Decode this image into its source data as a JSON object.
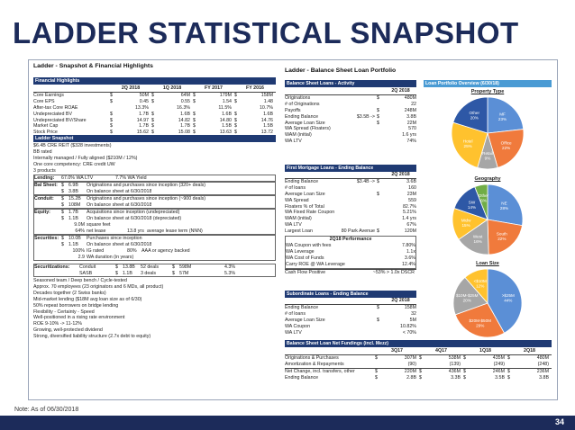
{
  "title": "LADDER STATISTICAL SNAPSHOT",
  "note": "Note: As of 06/30/2018",
  "page_number": "34",
  "left": {
    "heading": "Ladder - Snapshot & Financial Highlights",
    "fin": {
      "bar": "Financial Highlights",
      "cols": [
        "2Q 2018",
        "1Q 2018",
        "FY 2017",
        "FY 2016"
      ],
      "rows": [
        {
          "label": "Core Earnings",
          "c": [
            "$",
            "50M",
            "$",
            "64M",
            "$",
            "179M",
            "$",
            "158M"
          ]
        },
        {
          "label": "Core EPS",
          "c": [
            "$",
            "0.45",
            "$",
            "0.55",
            "$",
            "1.54",
            "$",
            "1.48"
          ]
        },
        {
          "label": "After-tax Core ROAE",
          "c": [
            "",
            "13.3%",
            "",
            "16.3%",
            "",
            "11.5%",
            "",
            "10.7%"
          ]
        },
        {
          "label": "Undepreciated BV",
          "c": [
            "$",
            "1.7B",
            "$",
            "1.6B",
            "$",
            "1.6B",
            "$",
            "1.6B"
          ]
        },
        {
          "label": "Undepreciated BV/Share",
          "c": [
            "$",
            "14.97",
            "$",
            "14.82",
            "$",
            "14.80",
            "$",
            "14.76"
          ]
        },
        {
          "label": "Market Cap",
          "c": [
            "$",
            "1.7B",
            "$",
            "1.7B",
            "$",
            "1.5B",
            "$",
            "1.5B"
          ]
        },
        {
          "label": "Stock Price",
          "c": [
            "$",
            "15.62",
            "$",
            "15.08",
            "$",
            "13.63",
            "$",
            "13.72"
          ]
        }
      ]
    },
    "snap": {
      "bar": "Ladder Snapshot",
      "lines": [
        "$6.4B CRE REIT ($328 investments)",
        "BB rated",
        "Internally managed / Fully aligned ($210M / 12%)",
        "One core competency: CRE credit UW",
        "3 products"
      ],
      "lending": {
        "label": "Lending:",
        "a": "67.0% WA LTV",
        "b": "7.7% WA Yield"
      },
      "balsheet": {
        "label": "Bal Sheet:",
        "r1a": "$",
        "r1b": "6.9B",
        "r1c": "Originations and purchases since inception (320+ deals)",
        "r2a": "$",
        "r2b": "3.8B",
        "r2c": "On balance sheet at 6/30/2018"
      },
      "conduit": {
        "label": "Conduit:",
        "r1a": "$",
        "r1b": "15.2B",
        "r1c": "Originations and purchases since inception (~900 deals)",
        "r2a": "$",
        "r2b": "108M",
        "r2c": "On balance sheet at 6/30/2018"
      },
      "equity": {
        "label": "Equity:",
        "r1a": "$",
        "r1b": "1.7B",
        "r1c": "Acquisitions since inception (undepreciated)",
        "r2a": "$",
        "r2b": "1.1B",
        "r2c": "On balance sheet at 6/30/2018 (depreciated)",
        "r3a": "9.0M",
        "r3b": "square feet",
        "r4a": "64%",
        "r4b": "net lease",
        "r4c": "13.8 yrs",
        "r4d": "average lease term (NNN)"
      },
      "securities": {
        "label": "Securities:",
        "r1a": "$",
        "r1b": "10.0B",
        "r1c": "Purchases since inception",
        "r2a": "$",
        "r2b": "1.1B",
        "r2c": "On balance sheet at 6/30/2018",
        "r3a": "100%",
        "r3b": "IG rated",
        "r3c": "80%",
        "r3d": "AAA or agency backed",
        "r4a": "2.9",
        "r4b": "WA duration (in years)"
      },
      "securitizations": {
        "label": "Securitizations:",
        "r1a": "Conduit",
        "r1b": "$",
        "r1c": "13.8B",
        "r1d": "52 deals",
        "r1e": "$",
        "r1f": "598M",
        "r1g": "4.3%",
        "r2a": "SASB",
        "r2b": "$",
        "r2c": "1.1B",
        "r2d": "3 deals",
        "r2e": "$",
        "r2f": "57M",
        "r2g": "5.3%"
      },
      "tail": [
        "Seasoned team / Deep bench / Cycle-tested",
        "Approx. 70 employees (23 originators and 6 MDs, all product)",
        "Decades together (2 Swiss banks)",
        "Mid-market lending ($18M avg loan size as of 6/30)",
        "50% repeat borrowers on bridge lending",
        "Flexibility - Certainty - Speed",
        "Well-positioned in a rising rate environment",
        "ROE  9-10% -> 11-12%",
        "Growing, well-protected dividend",
        "Strong, diversified liability structure (2.7x debt to equity)"
      ]
    }
  },
  "right": {
    "heading": "Ladder - Balance Sheet Loan Portfolio",
    "bsl": {
      "bar": "Balance Sheet Loans - Activity",
      "col": "2Q 2018",
      "rows": [
        {
          "label": "Originations",
          "mid": "",
          "cur": "$",
          "val": "480M"
        },
        {
          "label": "# of Originations",
          "mid": "",
          "cur": "",
          "val": "22"
        },
        {
          "label": "Payoffs",
          "mid": "",
          "cur": "$",
          "val": "248M"
        },
        {
          "label": "Ending Balance",
          "mid": "$3.5B ->",
          "cur": "$",
          "val": "3.8B"
        },
        {
          "label": "Average Loan Size",
          "mid": "",
          "cur": "$",
          "val": "22M"
        },
        {
          "label": "WA Spread (Floaters)",
          "mid": "",
          "cur": "",
          "val": "570"
        },
        {
          "label": "WAM (initial)",
          "mid": "",
          "cur": "",
          "val": "1.6 yrs"
        },
        {
          "label": "WA LTV",
          "mid": "",
          "cur": "",
          "val": "74%"
        }
      ]
    },
    "fml": {
      "bar": "First Mortgage Loans - Ending Balance",
      "col": "2Q 2018",
      "rows": [
        {
          "label": "Ending Balance",
          "mid": "$3.4B ->",
          "cur": "$",
          "val": "3.6B"
        },
        {
          "label": "# of loans",
          "mid": "",
          "cur": "",
          "val": "160"
        },
        {
          "label": "Average Loan Size",
          "mid": "",
          "cur": "$",
          "val": "23M"
        },
        {
          "label": "WA Spread",
          "mid": "",
          "cur": "",
          "val": "559"
        },
        {
          "label": "Floaters % of Total",
          "mid": "",
          "cur": "",
          "val": "82.7%"
        },
        {
          "label": "WA Fixed Rate Coupon",
          "mid": "",
          "cur": "",
          "val": "5.21%"
        },
        {
          "label": "WAM (initial)",
          "mid": "",
          "cur": "",
          "val": "1.4 yrs"
        },
        {
          "label": "WA LTV",
          "mid": "",
          "cur": "",
          "val": "67%"
        },
        {
          "label": "Largest Loan",
          "mid": "80 Park Avenue",
          "cur": "$",
          "val": "120M"
        }
      ],
      "perf_title": "2Q18 Performance",
      "perf": [
        {
          "label": "WA Coupon with fees",
          "val": "7.80%"
        },
        {
          "label": "WA Leverage",
          "val": "1.1x"
        },
        {
          "label": "WA Cost of Funds",
          "val": "3.6%"
        },
        {
          "label": "Carry ROE @ WA Leverage",
          "val": "12.4%"
        }
      ],
      "cash_label": "Cash Flow Positive",
      "cash_val": "~53% > 1.0x DSCR"
    },
    "sub": {
      "bar": "Subordinate Loans - Ending Balance",
      "col": "2Q 2018",
      "rows": [
        {
          "label": "Ending Balance",
          "cur": "$",
          "val": "158M"
        },
        {
          "label": "# of loans",
          "cur": "",
          "val": "32"
        },
        {
          "label": "Average Loan Size",
          "cur": "$",
          "val": "5M"
        },
        {
          "label": "WA Coupon",
          "cur": "",
          "val": "10.82%"
        },
        {
          "label": "WA LTV",
          "cur": "",
          "val": "< 70%"
        }
      ]
    },
    "net": {
      "bar": "Balance Sheet Loan Net Fundings (incl. Mezz)",
      "cols": [
        "3Q17",
        "4Q17",
        "1Q18",
        "2Q18"
      ],
      "rows": [
        {
          "label": "Originations & Purchases",
          "c": [
            "$",
            "307M",
            "$",
            "538M",
            "$",
            "435M",
            "$",
            "480M"
          ]
        },
        {
          "label": "Amortization & Repayments",
          "c": [
            "",
            "(90)",
            "",
            "(139)",
            "",
            "(249)",
            "",
            "(248)"
          ]
        },
        {
          "label": "Net Change, incl. transfers, other",
          "c": [
            "$",
            "220M",
            "$",
            "436M",
            "$",
            "246M",
            "$",
            "236M"
          ]
        },
        {
          "label": "Ending Balance",
          "c": [
            "$",
            "2.8B",
            "$",
            "3.3B",
            "$",
            "3.5B",
            "$",
            "3.8B"
          ]
        }
      ]
    },
    "overview": {
      "bar": "Loan Portfolio Overview (6/30/18)",
      "p1_title": "Property Type",
      "p2_title": "Geography",
      "p3_title": "Loan Size"
    }
  },
  "chart_data": [
    {
      "type": "pie",
      "title": "Property Type",
      "slices": [
        {
          "label": "MF",
          "value": 23,
          "color": "#5b8fd6"
        },
        {
          "label": "Office",
          "value": 22,
          "color": "#f07a3c"
        },
        {
          "label": "Retail",
          "value": 9,
          "color": "#a6a6a6"
        },
        {
          "label": "Hotel",
          "value": 25,
          "color": "#ffc22e"
        },
        {
          "label": "Other",
          "value": 20,
          "color": "#2e58a6"
        }
      ]
    },
    {
      "type": "pie",
      "title": "Geography",
      "slices": [
        {
          "label": "NE",
          "value": 28,
          "color": "#5b8fd6"
        },
        {
          "label": "South",
          "value": 22,
          "color": "#f07a3c"
        },
        {
          "label": "West",
          "value": 16,
          "color": "#a6a6a6"
        },
        {
          "label": "Midw",
          "value": 15,
          "color": "#ffc22e"
        },
        {
          "label": "SW",
          "value": 14,
          "color": "#2e58a6"
        },
        {
          "label": "Other",
          "value": 6,
          "color": "#70ad47"
        }
      ]
    },
    {
      "type": "pie",
      "title": "Loan Size",
      "slices": [
        {
          "label": ">$25M",
          "value": 44,
          "color": "#5b8fd6"
        },
        {
          "label": "$20M-$50M",
          "value": 29,
          "color": "#f07a3c"
        },
        {
          "label": "$10M-$25M",
          "value": 20,
          "color": "#a6a6a6"
        },
        {
          "label": "<$10M",
          "value": 12,
          "color": "#ffc22e"
        }
      ]
    }
  ]
}
